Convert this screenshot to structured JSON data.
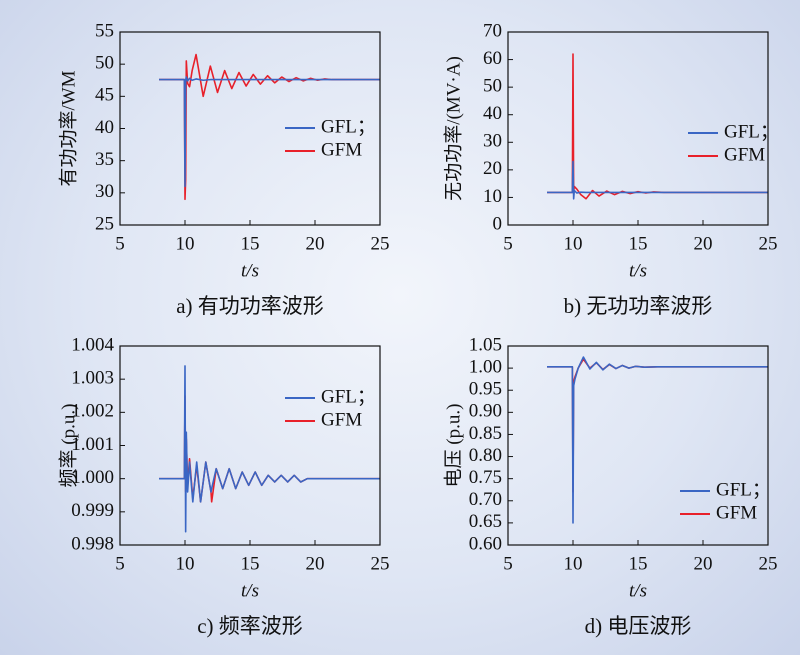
{
  "chart_data": [
    {
      "type": "line",
      "xlabel": "t/s",
      "ylabel": "有功功率/WM",
      "caption": "a) 有功功率波形",
      "xlim": [
        5,
        25
      ],
      "xticks": [
        5,
        10,
        15,
        20,
        25
      ],
      "ylim": [
        25,
        55
      ],
      "yticks": [
        25,
        30,
        35,
        40,
        45,
        50,
        55
      ],
      "x": [
        8,
        9.95,
        10.0,
        10.05,
        10.1,
        10.2,
        10.35,
        10.55,
        10.85,
        11.4,
        11.95,
        12.5,
        13.05,
        13.6,
        14.15,
        14.7,
        15.25,
        15.8,
        16.35,
        16.9,
        17.45,
        18.0,
        18.55,
        19.1,
        19.65,
        20.2,
        20.75,
        21.3,
        25
      ],
      "series": [
        {
          "name": "GFL；",
          "color": "#3a66c4",
          "values": [
            47.6,
            47.6,
            31,
            47.5,
            48,
            47.4,
            47.8,
            47.5,
            47.7,
            47.5,
            47.6,
            47.6,
            47.6,
            47.6,
            47.6,
            47.6,
            47.6,
            47.6,
            47.6,
            47.6,
            47.6,
            47.6,
            47.6,
            47.6,
            47.6,
            47.6,
            47.6,
            47.6,
            47.6
          ]
        },
        {
          "name": "GFM",
          "color": "#e8202a",
          "values": [
            47.6,
            47.6,
            29,
            32,
            50.5,
            47,
            46.5,
            49,
            51.5,
            45,
            49.7,
            45.6,
            49,
            46.2,
            48.7,
            46.6,
            48.4,
            46.9,
            48.2,
            47.1,
            48.0,
            47.3,
            47.9,
            47.4,
            47.8,
            47.5,
            47.7,
            47.6,
            47.6
          ]
        }
      ]
    },
    {
      "type": "line",
      "xlabel": "t/s",
      "ylabel": "无功功率/(MV·A)",
      "caption": "b) 无功功率波形",
      "xlim": [
        5,
        25
      ],
      "xticks": [
        5,
        10,
        15,
        20,
        25
      ],
      "ylim": [
        0,
        70
      ],
      "yticks": [
        0,
        10,
        20,
        30,
        40,
        50,
        60,
        70
      ],
      "x": [
        8,
        9.95,
        10.0,
        10.05,
        10.1,
        10.3,
        10.6,
        11.0,
        11.5,
        12.0,
        12.6,
        13.2,
        13.8,
        14.4,
        15.0,
        15.6,
        16.2,
        17.0,
        18.0,
        25
      ],
      "series": [
        {
          "name": "GFL；",
          "color": "#3a66c4",
          "values": [
            11.8,
            11.8,
            23,
            9.5,
            12.5,
            11.6,
            11.9,
            11.8,
            11.8,
            11.8,
            11.8,
            11.8,
            11.8,
            11.8,
            11.8,
            11.8,
            11.8,
            11.8,
            11.8,
            11.8
          ]
        },
        {
          "name": "GFM",
          "color": "#e8202a",
          "values": [
            11.8,
            11.8,
            62,
            12,
            14,
            13,
            11,
            9.5,
            12.5,
            10.5,
            12.3,
            11,
            12.2,
            11.4,
            12.1,
            11.6,
            12,
            11.8,
            11.8,
            11.8
          ]
        }
      ]
    },
    {
      "type": "line",
      "xlabel": "t/s",
      "ylabel": "频率 (p.u.)",
      "caption": "c) 频率波形",
      "xlim": [
        5,
        25
      ],
      "xticks": [
        5,
        10,
        15,
        20,
        25
      ],
      "ylim": [
        0.998,
        1.004
      ],
      "yticks": [
        0.998,
        0.999,
        {
          "value": 1,
          "label": "1.000"
        },
        1.001,
        1.002,
        1.003,
        1.004
      ],
      "x": [
        8,
        9.95,
        10.0,
        10.05,
        10.1,
        10.2,
        10.35,
        10.6,
        10.9,
        11.2,
        11.6,
        12.0,
        12.05,
        12.4,
        12.9,
        13.4,
        13.9,
        14.4,
        14.9,
        15.4,
        15.9,
        16.4,
        16.9,
        17.4,
        17.9,
        18.4,
        18.9,
        19.4,
        20,
        25
      ],
      "series": [
        {
          "name": "GFL；",
          "color": "#3a66c4",
          "values": [
            1.0,
            1.0,
            1.0034,
            0.9984,
            1.0014,
            0.9996,
            1.0005,
            0.9993,
            1.0005,
            0.9993,
            1.0005,
            0.9996,
            0.9997,
            1.0003,
            0.9997,
            1.0003,
            0.9997,
            1.0002,
            0.9998,
            1.0002,
            0.9998,
            1.0001,
            0.9999,
            1.0001,
            0.9999,
            1.0001,
            0.9999,
            1.0,
            1.0,
            1.0
          ]
        },
        {
          "name": "GFM",
          "color": "#e8202a",
          "values": [
            1.0,
            1.0,
            1.0025,
            0.9996,
            1.0012,
            0.9998,
            1.0006,
            0.9994,
            1.0004,
            0.9993,
            1.0005,
            0.9996,
            0.9993,
            1.0003,
            0.9997,
            1.0003,
            0.9997,
            1.0002,
            0.9998,
            1.0002,
            0.9998,
            1.0001,
            0.9999,
            1.0001,
            0.9999,
            1.0001,
            0.9999,
            1.0,
            1.0,
            1.0
          ]
        }
      ]
    },
    {
      "type": "line",
      "xlabel": "t/s",
      "ylabel": "电压 (p.u.)",
      "caption": "d) 电压波形",
      "xlim": [
        5,
        25
      ],
      "xticks": [
        5,
        10,
        15,
        20,
        25
      ],
      "ylim": [
        0.6,
        1.05
      ],
      "yticks": [
        {
          "value": 0.6,
          "label": "0.60"
        },
        0.65,
        {
          "value": 0.7,
          "label": "0.70"
        },
        0.75,
        {
          "value": 0.8,
          "label": "0.80"
        },
        0.85,
        {
          "value": 0.9,
          "label": "0.90"
        },
        0.95,
        {
          "value": 1,
          "label": "1.00"
        },
        1.05
      ],
      "x": [
        8,
        9.95,
        10.0,
        10.05,
        10.15,
        10.4,
        10.8,
        11.3,
        11.8,
        12.3,
        12.8,
        13.3,
        13.8,
        14.3,
        14.8,
        15.5,
        16.5,
        25
      ],
      "series": [
        {
          "name": "GFL；",
          "color": "#3a66c4",
          "values": [
            1.003,
            1.003,
            0.65,
            0.96,
            0.975,
            1.0,
            1.025,
            0.998,
            1.013,
            0.996,
            1.009,
            0.999,
            1.006,
            1.0,
            1.004,
            1.002,
            1.003,
            1.003
          ]
        },
        {
          "name": "GFM",
          "color": "#e8202a",
          "values": [
            1.003,
            1.003,
            0.72,
            0.97,
            0.98,
            1.0,
            1.02,
            1.0,
            1.012,
            0.997,
            1.008,
            0.999,
            1.006,
            1.0,
            1.004,
            1.002,
            1.003,
            1.003
          ]
        }
      ]
    }
  ]
}
